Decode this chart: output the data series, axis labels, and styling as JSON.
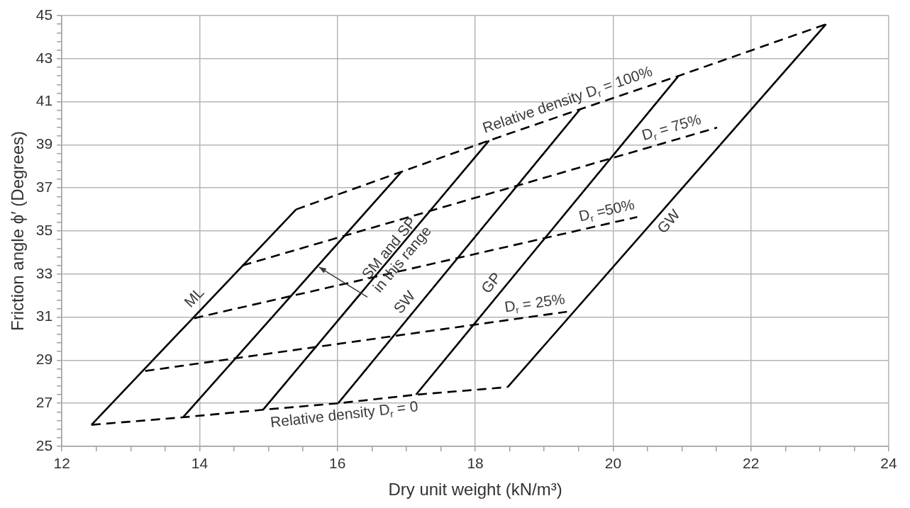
{
  "chart_data": {
    "type": "line",
    "xlabel": "Dry unit weight (kN/m³)",
    "ylabel": "Friction angle ϕ′ (Degrees)",
    "xlim": [
      12,
      24
    ],
    "xticks": [
      12,
      {
        "value": 12.5,
        "label": null
      },
      {
        "value": 13,
        "label": null
      },
      {
        "value": 13.5,
        "label": null
      },
      14,
      {
        "value": 14.5,
        "label": null
      },
      {
        "value": 15,
        "label": null
      },
      {
        "value": 15.5,
        "label": null
      },
      16,
      {
        "value": 16.5,
        "label": null
      },
      {
        "value": 17,
        "label": null
      },
      {
        "value": 17.5,
        "label": null
      },
      18,
      {
        "value": 18.5,
        "label": null
      },
      {
        "value": 19,
        "label": null
      },
      {
        "value": 19.5,
        "label": null
      },
      20,
      {
        "value": 20.5,
        "label": null
      },
      {
        "value": 21,
        "label": null
      },
      {
        "value": 21.5,
        "label": null
      },
      22,
      {
        "value": 22.5,
        "label": null
      },
      {
        "value": 23,
        "label": null
      },
      {
        "value": 23.5,
        "label": null
      },
      24
    ],
    "ylim": [
      25,
      45
    ],
    "yticks": [
      25,
      {
        "value": 25.4,
        "label": null
      },
      {
        "value": 25.8,
        "label": null
      },
      {
        "value": 26.2,
        "label": null
      },
      {
        "value": 26.6,
        "label": null
      },
      27,
      {
        "value": 27.4,
        "label": null
      },
      {
        "value": 27.8,
        "label": null
      },
      {
        "value": 28.2,
        "label": null
      },
      {
        "value": 28.6,
        "label": null
      },
      29,
      {
        "value": 29.4,
        "label": null
      },
      {
        "value": 29.8,
        "label": null
      },
      {
        "value": 30.2,
        "label": null
      },
      {
        "value": 30.6,
        "label": null
      },
      31,
      {
        "value": 31.4,
        "label": null
      },
      {
        "value": 31.8,
        "label": null
      },
      {
        "value": 32.2,
        "label": null
      },
      {
        "value": 32.6,
        "label": null
      },
      33,
      {
        "value": 33.4,
        "label": null
      },
      {
        "value": 33.8,
        "label": null
      },
      {
        "value": 34.2,
        "label": null
      },
      {
        "value": 34.6,
        "label": null
      },
      35,
      {
        "value": 35.4,
        "label": null
      },
      {
        "value": 35.8,
        "label": null
      },
      {
        "value": 36.2,
        "label": null
      },
      {
        "value": 36.6,
        "label": null
      },
      37,
      {
        "value": 37.4,
        "label": null
      },
      {
        "value": 37.8,
        "label": null
      },
      {
        "value": 38.2,
        "label": null
      },
      {
        "value": 38.6,
        "label": null
      },
      39,
      {
        "value": 39.4,
        "label": null
      },
      {
        "value": 39.8,
        "label": null
      },
      {
        "value": 40.2,
        "label": null
      },
      {
        "value": 40.6,
        "label": null
      },
      41,
      {
        "value": 41.4,
        "label": null
      },
      {
        "value": 41.8,
        "label": null
      },
      {
        "value": 42.2,
        "label": null
      },
      {
        "value": 42.6,
        "label": null
      },
      43,
      {
        "value": 43.4,
        "label": null
      },
      {
        "value": 43.8,
        "label": null
      },
      {
        "value": 44.2,
        "label": null
      },
      {
        "value": 44.6,
        "label": null
      },
      45
    ],
    "grid": true,
    "legend": false,
    "marker": "none",
    "series": [
      {
        "color": "#000000",
        "line_style": "solid",
        "x": [
          12.43,
          15.4
        ],
        "values": [
          26.0,
          36.0
        ]
      },
      {
        "color": "#000000",
        "line_style": "solid",
        "x": [
          13.76,
          16.93
        ],
        "values": [
          26.35,
          37.75
        ]
      },
      {
        "color": "#000000",
        "line_style": "solid",
        "x": [
          14.92,
          18.2
        ],
        "values": [
          26.7,
          39.2
        ]
      },
      {
        "color": "#000000",
        "line_style": "solid",
        "x": [
          16.01,
          19.52
        ],
        "values": [
          27.0,
          40.65
        ]
      },
      {
        "color": "#000000",
        "line_style": "solid",
        "x": [
          17.14,
          20.95
        ],
        "values": [
          27.4,
          42.2
        ]
      },
      {
        "color": "#000000",
        "line_style": "solid",
        "x": [
          18.47,
          23.09
        ],
        "values": [
          27.75,
          44.6
        ]
      },
      {
        "color": "#000000",
        "line_style": "dashed",
        "x": [
          12.43,
          13.76,
          14.92,
          16.01,
          17.14,
          18.47
        ],
        "values": [
          26.0,
          26.35,
          26.7,
          27.0,
          27.4,
          27.75
        ]
      },
      {
        "color": "#000000",
        "line_style": "dashed",
        "x": [
          13.21,
          19.33
        ],
        "values": [
          28.5,
          31.25
        ]
      },
      {
        "color": "#000000",
        "line_style": "dashed",
        "x": [
          13.92,
          20.35
        ],
        "values": [
          30.95,
          35.65
        ]
      },
      {
        "color": "#000000",
        "line_style": "dashed",
        "x": [
          14.62,
          21.51
        ],
        "values": [
          33.4,
          39.8
        ]
      },
      {
        "color": "#000000",
        "line_style": "dashed",
        "x": [
          15.4,
          16.93,
          18.2,
          19.52,
          20.95,
          23.09
        ],
        "values": [
          36.0,
          37.75,
          39.2,
          40.65,
          42.2,
          44.6
        ]
      }
    ],
    "annotations": [
      {
        "text": "ML",
        "x": 14.06,
        "y": 31.5
      },
      {
        "text": "SW",
        "x": 17.12,
        "y": 31.3
      },
      {
        "text": "GP",
        "x": 18.38,
        "y": 32.2
      },
      {
        "text": "GW",
        "x": 20.68,
        "y": 35.8
      },
      {
        "text": "Relative density D$_{r}$ = 100%",
        "x": 19.4,
        "y": 40.52
      },
      {
        "text": "D$_{r}$ = 75%",
        "x": 20.9,
        "y": 39.23
      },
      {
        "text": "D$_{r}$ =50%",
        "x": 19.95,
        "y": 35.36
      },
      {
        "text": "D$_{r}$ = 25%",
        "x": 18.89,
        "y": 31.05
      },
      {
        "text": "Relative density D$_{r}$ = 0",
        "x": 16.08,
        "y": 27.02
      },
      {
        "text": "SM and SP\nin this range",
        "x": 15.7,
        "y": 33.33
      }
    ]
  }
}
